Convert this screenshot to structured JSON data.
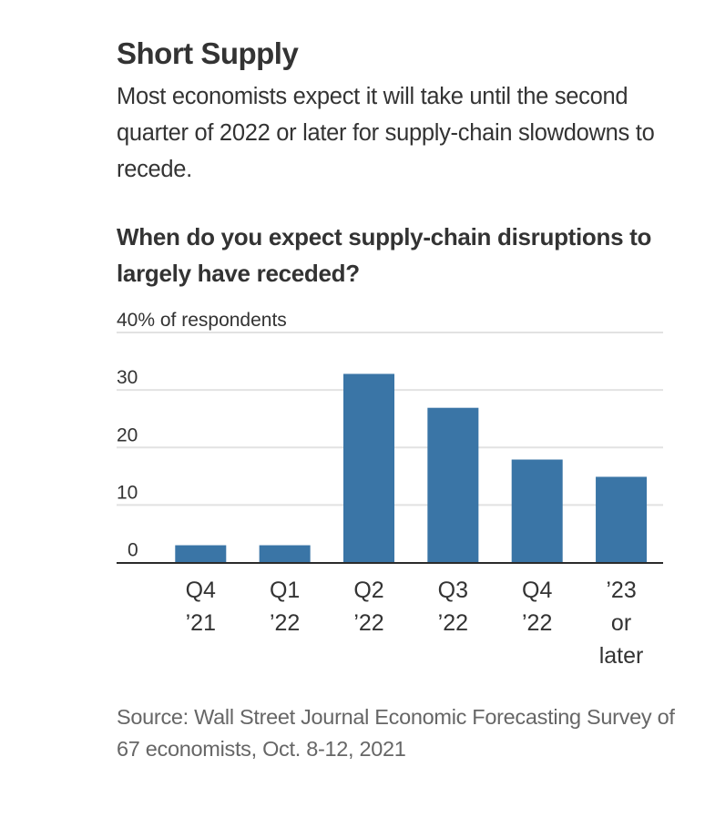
{
  "header": {
    "title": "Short Supply",
    "subtitle": "Most economists expect it will take until the second quarter of 2022 or later for supply-chain slowdowns to recede."
  },
  "footer": {
    "source": "Source: Wall Street Journal Economic Forecasting Survey of 67 economists, Oct. 8-12, 2021"
  },
  "chart_data": {
    "type": "bar",
    "title": "When do you expect supply-chain disruptions to largely have receded?",
    "xlabel": "",
    "ylabel": "% of respondents",
    "y_unit_label": "40% of respondents",
    "ylim": [
      0,
      40
    ],
    "yticks": [
      0,
      10,
      20,
      30,
      40
    ],
    "ytick_labels": [
      "0",
      "10",
      "20",
      "30",
      "40% of respondents"
    ],
    "grid": true,
    "categories": [
      "Q4 ’21",
      "Q1 ’22",
      "Q2 ’22",
      "Q3 ’22",
      "Q4 ’22",
      "’23 or later"
    ],
    "category_lines": [
      [
        "Q4",
        "’21"
      ],
      [
        "Q1",
        "’22"
      ],
      [
        "Q2",
        "’22"
      ],
      [
        "Q3",
        "’22"
      ],
      [
        "Q4",
        "’22"
      ],
      [
        "’23",
        "or",
        "later"
      ]
    ],
    "values": [
      3.0,
      3.0,
      32.8,
      26.9,
      17.9,
      14.9
    ],
    "colors": {
      "bar": "#3a75a6",
      "grid": "#e2e2e2",
      "axis": "#2b2b2b",
      "text": "#333333"
    }
  }
}
